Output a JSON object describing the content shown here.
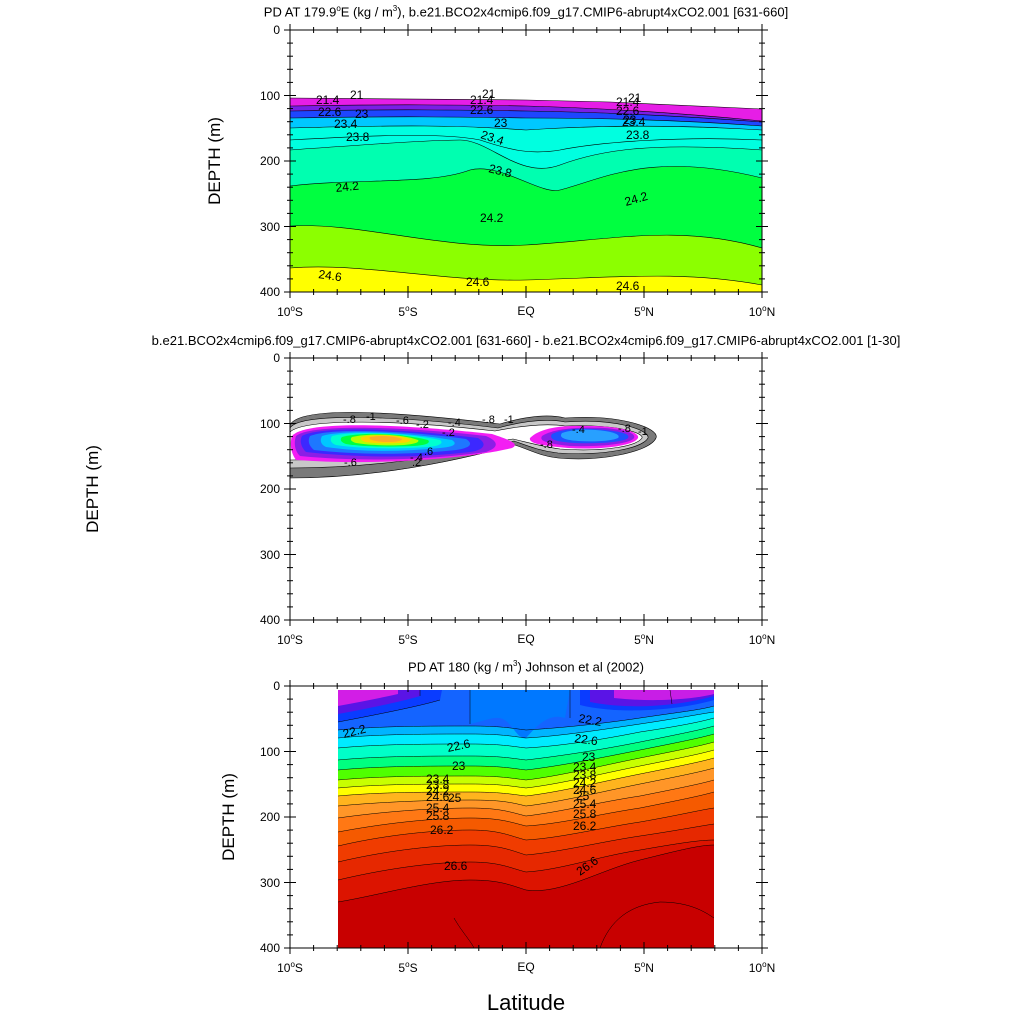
{
  "figure": {
    "xlabel": "Latitude",
    "x_ticks": [
      "10°S",
      "5°S",
      "EQ",
      "5°N",
      "10°N"
    ],
    "y_ticks": [
      "0",
      "100",
      "200",
      "300",
      "400"
    ]
  },
  "chart_data": [
    {
      "type": "heatmap",
      "title_pre": "PD AT 179.9",
      "title_deg": "o",
      "title_mid": "E (kg / m",
      "title_exp": "3",
      "title_post": "), b.e21.BCO2x4cmip6.f09_g17.CMIP6-abrupt4xCO2.001 [631-660]",
      "ylabel": "DEPTH (m)",
      "xlim": [
        -10,
        10
      ],
      "ylim": [
        400,
        0
      ],
      "contour_labels": [
        "21",
        "21.4",
        "22.6",
        "23",
        "23.4",
        "23.8",
        "24.2",
        "24.6"
      ],
      "surface_depth_m": [
        [
          -10,
          102
        ],
        [
          -5,
          99
        ],
        [
          0,
          100
        ],
        [
          5,
          106
        ],
        [
          10,
          120
        ]
      ]
    },
    {
      "type": "heatmap",
      "title": "b.e21.BCO2x4cmip6.f09_g17.CMIP6-abrupt4xCO2.001 [631-660] - b.e21.BCO2x4cmip6.f09_g17.CMIP6-abrupt4xCO2.001 [1-30]",
      "ylabel": "DEPTH (m)",
      "xlim": [
        -10,
        10
      ],
      "ylim": [
        400,
        0
      ],
      "contour_labels": [
        "-.8",
        "-1",
        "-.6",
        "-.2",
        "-.4",
        ".6",
        "-.4",
        ".2"
      ]
    },
    {
      "type": "heatmap",
      "title_pre": "PD AT 180 (kg / m",
      "title_exp": "3",
      "title_post": ") Johnson et al (2002)",
      "ylabel": "DEPTH (m)",
      "xlim": [
        -10,
        10
      ],
      "ylim": [
        400,
        0
      ],
      "data_xlim": [
        -8,
        8
      ],
      "contour_labels": [
        "22.2",
        "22.6",
        "23",
        "23.4",
        "23.8",
        "24.2",
        "24.6",
        "25",
        "25.4",
        "25.8",
        "26.2",
        "26.6"
      ]
    }
  ]
}
